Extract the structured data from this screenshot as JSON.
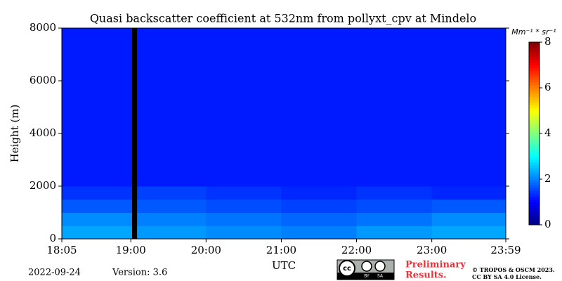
{
  "chart_data": {
    "type": "heatmap",
    "title": "Quasi backscatter coefficient at 532nm from pollyxt_cpv at Mindelo",
    "xlabel": "UTC",
    "ylabel": "Height (m)",
    "xlim": [
      1085,
      1439
    ],
    "xticks": [
      {
        "value": 1085,
        "label": "18:05"
      },
      {
        "value": 1140,
        "label": "19:00"
      },
      {
        "value": 1200,
        "label": "20:00"
      },
      {
        "value": 1260,
        "label": "21:00"
      },
      {
        "value": 1320,
        "label": "22:00"
      },
      {
        "value": 1380,
        "label": "23:00"
      },
      {
        "value": 1439,
        "label": "23:59"
      }
    ],
    "ylim": [
      0,
      8000
    ],
    "yticks": [
      0,
      2000,
      4000,
      6000,
      8000
    ],
    "x_bins": [
      1085,
      1141,
      1145,
      1200,
      1260,
      1320,
      1380,
      1439
    ],
    "y_bins": [
      0,
      500,
      1000,
      1500,
      2000,
      8000
    ],
    "z": [
      [
        2.3,
        null,
        2.2,
        2.1,
        2.0,
        2.2,
        2.3
      ],
      [
        2.1,
        null,
        2.0,
        1.9,
        1.8,
        1.9,
        2.1
      ],
      [
        1.7,
        null,
        1.7,
        1.6,
        1.5,
        1.6,
        1.7
      ],
      [
        1.4,
        null,
        1.5,
        1.4,
        1.3,
        1.4,
        1.3
      ],
      [
        1.2,
        null,
        1.2,
        1.2,
        1.2,
        1.2,
        1.2
      ]
    ],
    "colormap": "jet",
    "null_color": "#000000",
    "clim": [
      0,
      8
    ],
    "cticks": [
      0,
      2,
      4,
      6,
      8
    ],
    "colorbar_label": "Mm⁻¹ * sr⁻¹"
  },
  "footer": {
    "date": "2022-09-24",
    "version": "Version: 3.6",
    "notice": [
      "Preliminary",
      "Results."
    ],
    "copyright": [
      "© TROPOS & OSCM 2023.",
      "CC BY SA 4.0 License."
    ],
    "badge": [
      "BY",
      "SA"
    ]
  }
}
